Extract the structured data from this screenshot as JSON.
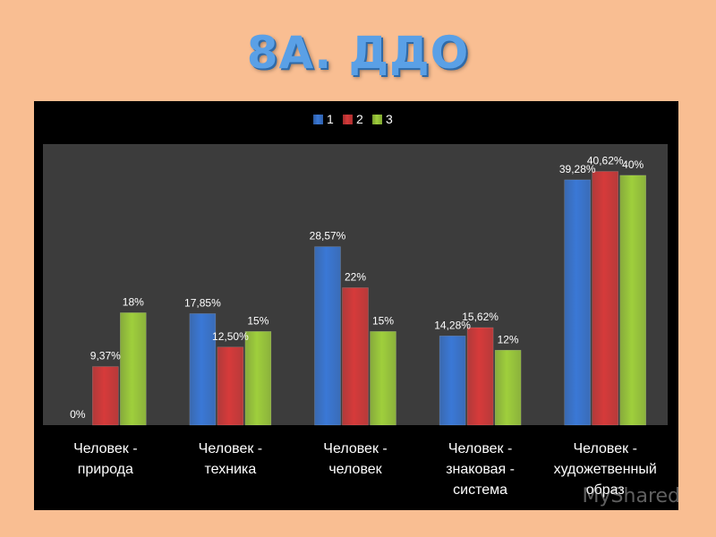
{
  "slide": {
    "title": "8А. ДДО"
  },
  "watermark": "MyShared",
  "colors": {
    "background": "#f9be92",
    "panel": "#000000",
    "plot_area": "#3c3c3c"
  },
  "chart_data": {
    "type": "bar",
    "title": "",
    "xlabel": "",
    "ylabel": "",
    "ylim": [
      0,
      45
    ],
    "grid": false,
    "legend": "top-center",
    "categories": [
      [
        "Человек -",
        "природа"
      ],
      [
        "Человек -",
        "техника"
      ],
      [
        "Человек -",
        "человек"
      ],
      [
        "Человек -",
        "знаковая -",
        "система"
      ],
      [
        "Человек -",
        "художетвенный",
        "образ"
      ]
    ],
    "series": [
      {
        "name": "1",
        "color": "#3a78d6",
        "values": [
          0,
          17.85,
          28.57,
          14.28,
          39.28
        ],
        "labels": [
          "0%",
          "17,85%",
          "28,57%",
          "14,28%",
          "39,28%"
        ]
      },
      {
        "name": "2",
        "color": "#d63a3a",
        "values": [
          9.37,
          12.5,
          22,
          15.62,
          40.62
        ],
        "labels": [
          "9,37%",
          "12,50%",
          "22%",
          "15,62%",
          "40,62%"
        ]
      },
      {
        "name": "3",
        "color": "#9fcf3c",
        "values": [
          18,
          15,
          15,
          12,
          40
        ],
        "labels": [
          "18%",
          "15%",
          "15%",
          "12%",
          "40%"
        ]
      }
    ]
  }
}
